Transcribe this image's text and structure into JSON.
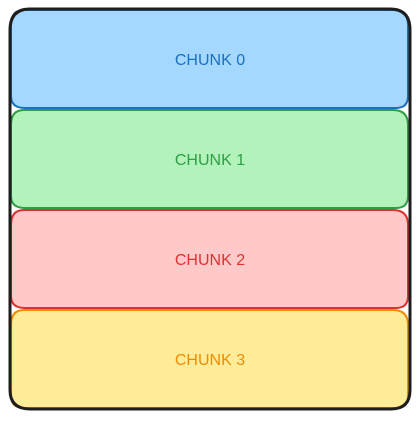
{
  "diagram": {
    "chunks": [
      {
        "label": "CHUNK 0",
        "fill": "#a5d8ff",
        "stroke": "#1971c2",
        "text_color": "#1971c2"
      },
      {
        "label": "CHUNK 1",
        "fill": "#b2f2bb",
        "stroke": "#2f9e44",
        "text_color": "#2f9e44"
      },
      {
        "label": "CHUNK 2",
        "fill": "#ffc9c9",
        "stroke": "#e03131",
        "text_color": "#e03131"
      },
      {
        "label": "CHUNK 3",
        "fill": "#ffec99",
        "stroke": "#f08c00",
        "text_color": "#f08c00"
      }
    ],
    "outer_stroke": "#1e1e1e"
  }
}
